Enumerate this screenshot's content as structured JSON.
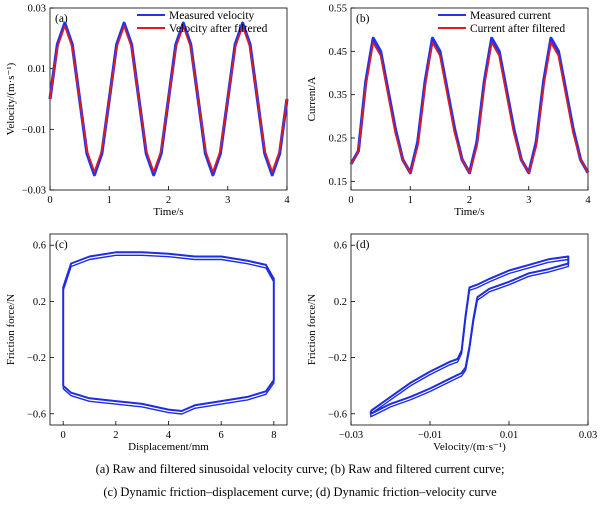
{
  "colors": {
    "measured": "#2233ee",
    "filtered": "#e41a1c",
    "curve": "#1f2de0"
  },
  "caption": {
    "line1": "(a) Raw and filtered sinusoidal velocity curve;  (b) Raw and filtered current curve;",
    "line2": "(c) Dynamic friction–displacement curve;  (d) Dynamic friction–velocity curve"
  },
  "chart_data": [
    {
      "type": "line",
      "panel_label": "(a)",
      "xlabel": "Time/s",
      "ylabel": "Velocity/(m·s⁻¹)",
      "xlim": [
        0,
        4
      ],
      "ylim": [
        -0.03,
        0.03
      ],
      "x_ticks": [
        "0",
        "1",
        "2",
        "3",
        "4"
      ],
      "y_ticks": [
        "-0.03",
        "-0.01",
        "0.01",
        "0.03"
      ],
      "legend_position": "top-right",
      "series": [
        {
          "name": "Measured velocity",
          "x": [
            0,
            0.125,
            0.25,
            0.375,
            0.5,
            0.625,
            0.75,
            0.875,
            1,
            1.125,
            1.25,
            1.375,
            1.5,
            1.625,
            1.75,
            1.875,
            2,
            2.125,
            2.25,
            2.375,
            2.5,
            2.625,
            2.75,
            2.875,
            3,
            3.125,
            3.25,
            3.375,
            3.5,
            3.625,
            3.75,
            3.875,
            4
          ],
          "y": [
            0,
            0.018,
            0.025,
            0.018,
            0,
            -0.018,
            -0.025,
            -0.018,
            0,
            0.018,
            0.025,
            0.018,
            0,
            -0.018,
            -0.025,
            -0.018,
            0,
            0.018,
            0.025,
            0.018,
            0,
            -0.018,
            -0.025,
            -0.018,
            0,
            0.018,
            0.025,
            0.018,
            0,
            -0.018,
            -0.025,
            -0.018,
            0
          ]
        },
        {
          "name": "Velocity after filtered",
          "x": [
            0,
            0.125,
            0.25,
            0.375,
            0.5,
            0.625,
            0.75,
            0.875,
            1,
            1.125,
            1.25,
            1.375,
            1.5,
            1.625,
            1.75,
            1.875,
            2,
            2.125,
            2.25,
            2.375,
            2.5,
            2.625,
            2.75,
            2.875,
            3,
            3.125,
            3.25,
            3.375,
            3.5,
            3.625,
            3.75,
            3.875,
            4
          ],
          "y": [
            0,
            0.017,
            0.024,
            0.017,
            0,
            -0.017,
            -0.024,
            -0.017,
            0,
            0.017,
            0.024,
            0.017,
            0,
            -0.017,
            -0.024,
            -0.017,
            0,
            0.017,
            0.024,
            0.017,
            0,
            -0.017,
            -0.024,
            -0.017,
            0,
            0.017,
            0.024,
            0.017,
            0,
            -0.017,
            -0.024,
            -0.017,
            0
          ]
        }
      ]
    },
    {
      "type": "line",
      "panel_label": "(b)",
      "xlabel": "Time/s",
      "ylabel": "Current/A",
      "xlim": [
        0,
        4
      ],
      "ylim": [
        0.13,
        0.55
      ],
      "x_ticks": [
        "0",
        "1",
        "2",
        "3",
        "4"
      ],
      "y_ticks": [
        "0.15",
        "0.25",
        "0.35",
        "0.45",
        "0.55"
      ],
      "legend_position": "top-right",
      "series": [
        {
          "name": "Measured current",
          "x": [
            0,
            0.125,
            0.25,
            0.375,
            0.5,
            0.625,
            0.75,
            0.875,
            1,
            1.125,
            1.25,
            1.375,
            1.5,
            1.625,
            1.75,
            1.875,
            2,
            2.125,
            2.25,
            2.375,
            2.5,
            2.625,
            2.75,
            2.875,
            3,
            3.125,
            3.25,
            3.375,
            3.5,
            3.625,
            3.75,
            3.875,
            4
          ],
          "y": [
            0.19,
            0.22,
            0.38,
            0.48,
            0.45,
            0.36,
            0.27,
            0.2,
            0.17,
            0.24,
            0.38,
            0.48,
            0.45,
            0.36,
            0.27,
            0.2,
            0.17,
            0.24,
            0.38,
            0.48,
            0.45,
            0.36,
            0.27,
            0.2,
            0.17,
            0.24,
            0.38,
            0.48,
            0.45,
            0.36,
            0.27,
            0.2,
            0.17
          ]
        },
        {
          "name": "Current after filtered",
          "x": [
            0,
            0.125,
            0.25,
            0.375,
            0.5,
            0.625,
            0.75,
            0.875,
            1,
            1.125,
            1.25,
            1.375,
            1.5,
            1.625,
            1.75,
            1.875,
            2,
            2.125,
            2.25,
            2.375,
            2.5,
            2.625,
            2.75,
            2.875,
            3,
            3.125,
            3.25,
            3.375,
            3.5,
            3.625,
            3.75,
            3.875,
            4
          ],
          "y": [
            0.19,
            0.22,
            0.37,
            0.47,
            0.44,
            0.35,
            0.26,
            0.2,
            0.17,
            0.23,
            0.37,
            0.47,
            0.44,
            0.35,
            0.26,
            0.2,
            0.17,
            0.23,
            0.37,
            0.47,
            0.44,
            0.35,
            0.26,
            0.2,
            0.17,
            0.23,
            0.37,
            0.47,
            0.44,
            0.35,
            0.26,
            0.2,
            0.17
          ]
        }
      ]
    },
    {
      "type": "line",
      "panel_label": "(c)",
      "xlabel": "Displacement/mm",
      "ylabel": "Friction force/N",
      "xlim": [
        -0.5,
        8.5
      ],
      "ylim": [
        -0.68,
        0.68
      ],
      "x_ticks": [
        "0",
        "2",
        "4",
        "6",
        "8"
      ],
      "y_ticks": [
        "-0.6",
        "-0.2",
        "0.2",
        "0.6"
      ],
      "series": [
        {
          "name": "",
          "x": [
            0,
            0,
            0.3,
            1,
            2,
            3,
            4,
            5,
            6,
            7,
            7.7,
            8,
            8,
            8,
            7.7,
            7,
            6,
            5,
            4.5,
            4,
            3,
            2,
            1,
            0.3,
            0,
            0
          ],
          "y": [
            -0.4,
            0.3,
            0.47,
            0.52,
            0.55,
            0.55,
            0.54,
            0.52,
            0.52,
            0.49,
            0.46,
            0.36,
            0,
            -0.36,
            -0.44,
            -0.48,
            -0.51,
            -0.54,
            -0.58,
            -0.57,
            -0.53,
            -0.51,
            -0.49,
            -0.45,
            -0.4,
            -0.4
          ]
        }
      ]
    },
    {
      "type": "line",
      "panel_label": "(d)",
      "xlabel": "Velocity/(m·s⁻¹)",
      "ylabel": "Friction force/N",
      "xlim": [
        -0.03,
        0.03
      ],
      "ylim": [
        -0.68,
        0.68
      ],
      "x_ticks": [
        "-0.03",
        "-0.01",
        "0.01",
        "0.03"
      ],
      "y_ticks": [
        "-0.6",
        "-0.2",
        "0.2",
        "0.6"
      ],
      "series": [
        {
          "name": "",
          "x": [
            -0.025,
            -0.02,
            -0.015,
            -0.01,
            -0.005,
            -0.003,
            -0.002,
            -0.001,
            0,
            0.002,
            0.005,
            0.01,
            0.015,
            0.02,
            0.025,
            0.025,
            0.02,
            0.015,
            0.01,
            0.005,
            0.002,
            0.001,
            0,
            -0.001,
            -0.002,
            -0.005,
            -0.01,
            -0.015,
            -0.02,
            -0.025,
            -0.025
          ],
          "y": [
            -0.58,
            -0.48,
            -0.38,
            -0.3,
            -0.23,
            -0.21,
            -0.15,
            0.1,
            0.3,
            0.32,
            0.36,
            0.42,
            0.46,
            0.5,
            0.52,
            0.47,
            0.43,
            0.4,
            0.34,
            0.29,
            0.23,
            0.08,
            -0.12,
            -0.27,
            -0.31,
            -0.35,
            -0.42,
            -0.48,
            -0.53,
            -0.6,
            -0.58
          ]
        }
      ]
    }
  ]
}
